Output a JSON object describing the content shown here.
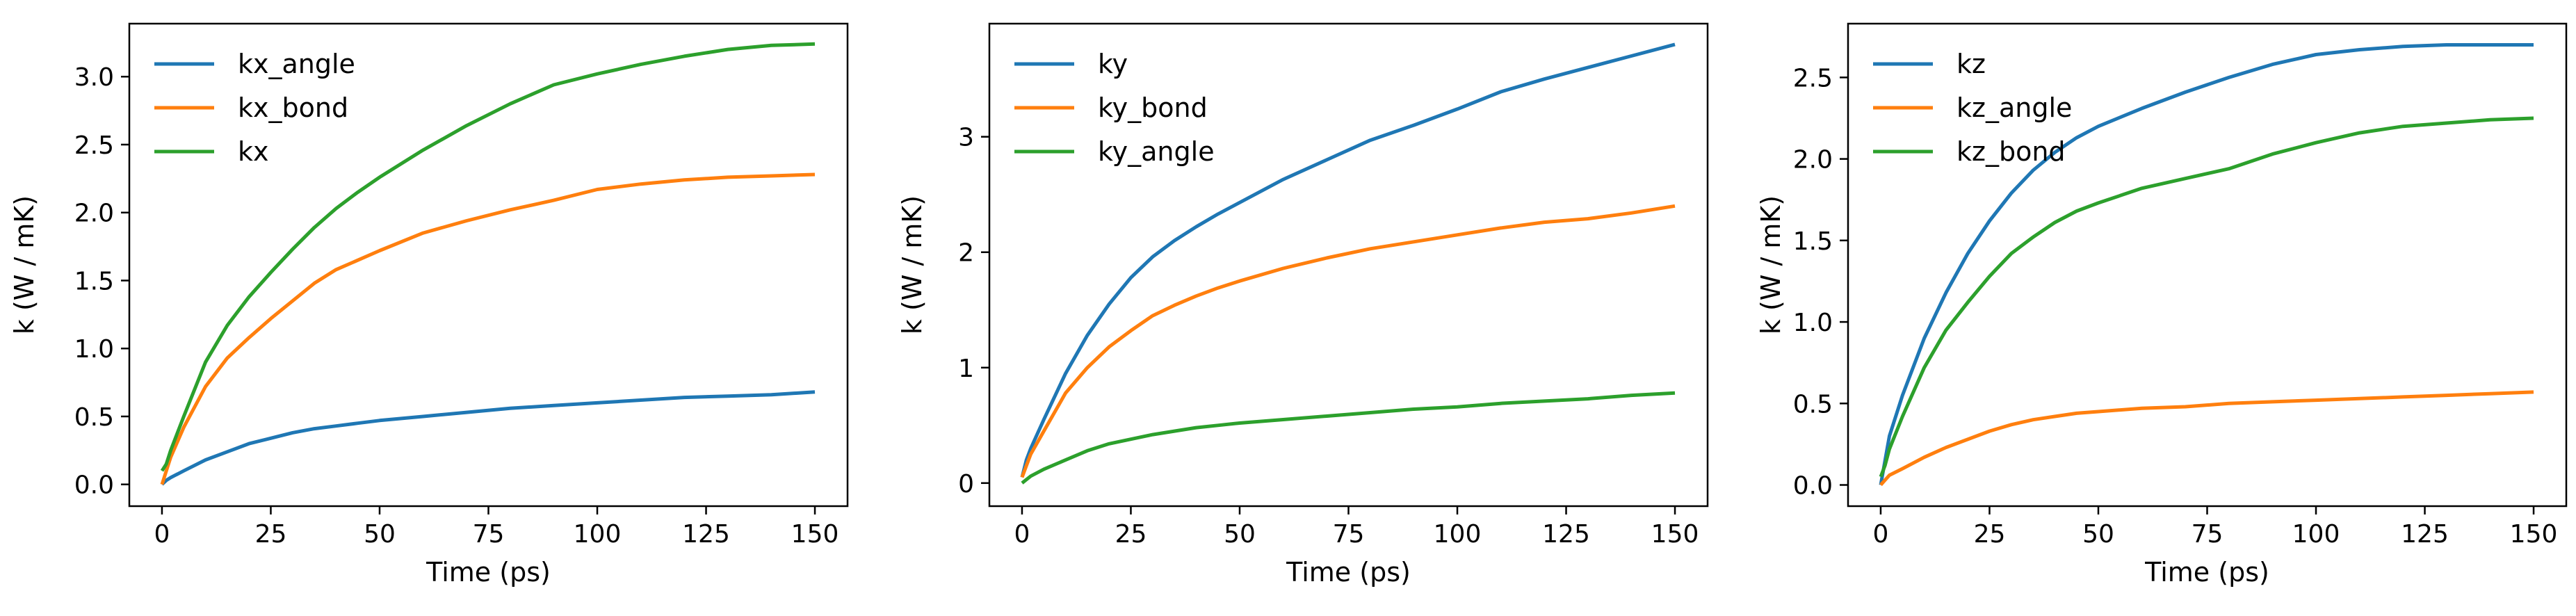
{
  "chart_data": [
    {
      "type": "line",
      "xlabel": "Time (ps)",
      "ylabel": "k (W / mK)",
      "xlim": [
        -7.5,
        157.5
      ],
      "ylim": [
        -0.16,
        3.39
      ],
      "xticks": [
        0,
        25,
        50,
        75,
        100,
        125,
        150
      ],
      "xtick_labels": [
        "0",
        "25",
        "50",
        "75",
        "100",
        "125",
        "150"
      ],
      "yticks": [
        0.0,
        0.5,
        1.0,
        1.5,
        2.0,
        2.5,
        3.0
      ],
      "ytick_labels": [
        "0.0",
        "0.5",
        "1.0",
        "1.5",
        "2.0",
        "2.5",
        "3.0"
      ],
      "legend_position": "upper-left",
      "x": [
        0,
        1,
        2,
        5,
        10,
        15,
        20,
        25,
        30,
        35,
        40,
        45,
        50,
        60,
        70,
        80,
        90,
        100,
        110,
        120,
        130,
        140,
        150
      ],
      "series": [
        {
          "name": "kx_angle",
          "color": "#1f77b4",
          "values": [
            0.0,
            0.03,
            0.05,
            0.1,
            0.18,
            0.24,
            0.3,
            0.34,
            0.38,
            0.41,
            0.43,
            0.45,
            0.47,
            0.5,
            0.53,
            0.56,
            0.58,
            0.6,
            0.62,
            0.64,
            0.65,
            0.66,
            0.68
          ]
        },
        {
          "name": "kx_bond",
          "color": "#ff7f0e",
          "values": [
            0.0,
            0.1,
            0.2,
            0.42,
            0.72,
            0.93,
            1.08,
            1.22,
            1.35,
            1.48,
            1.58,
            1.65,
            1.72,
            1.85,
            1.94,
            2.02,
            2.09,
            2.17,
            2.21,
            2.24,
            2.26,
            2.27,
            2.28
          ]
        },
        {
          "name": "kx",
          "color": "#2ca02c",
          "values": [
            0.1,
            0.15,
            0.25,
            0.5,
            0.9,
            1.17,
            1.38,
            1.56,
            1.73,
            1.89,
            2.03,
            2.15,
            2.26,
            2.46,
            2.64,
            2.8,
            2.94,
            3.02,
            3.09,
            3.15,
            3.2,
            3.23,
            3.24
          ]
        }
      ]
    },
    {
      "type": "line",
      "xlabel": "Time (ps)",
      "ylabel": "k (W / mK)",
      "xlim": [
        -7.5,
        157.5
      ],
      "ylim": [
        -0.2,
        3.98
      ],
      "xticks": [
        0,
        25,
        50,
        75,
        100,
        125,
        150
      ],
      "xtick_labels": [
        "0",
        "25",
        "50",
        "75",
        "100",
        "125",
        "150"
      ],
      "yticks": [
        0,
        1,
        2,
        3
      ],
      "ytick_labels": [
        "0",
        "1",
        "2",
        "3"
      ],
      "legend_position": "upper-left",
      "x": [
        0,
        1,
        2,
        5,
        10,
        15,
        20,
        25,
        30,
        35,
        40,
        45,
        50,
        60,
        70,
        80,
        90,
        100,
        110,
        120,
        130,
        140,
        150
      ],
      "series": [
        {
          "name": "ky",
          "color": "#1f77b4",
          "values": [
            0.05,
            0.2,
            0.3,
            0.55,
            0.95,
            1.28,
            1.55,
            1.78,
            1.96,
            2.1,
            2.22,
            2.33,
            2.43,
            2.63,
            2.8,
            2.97,
            3.1,
            3.24,
            3.39,
            3.5,
            3.6,
            3.7,
            3.8
          ]
        },
        {
          "name": "ky_bond",
          "color": "#ff7f0e",
          "values": [
            0.05,
            0.15,
            0.25,
            0.45,
            0.78,
            1.0,
            1.18,
            1.32,
            1.45,
            1.54,
            1.62,
            1.69,
            1.75,
            1.86,
            1.95,
            2.03,
            2.09,
            2.15,
            2.21,
            2.26,
            2.29,
            2.34,
            2.4
          ]
        },
        {
          "name": "ky_angle",
          "color": "#2ca02c",
          "values": [
            0.0,
            0.03,
            0.06,
            0.12,
            0.2,
            0.28,
            0.34,
            0.38,
            0.42,
            0.45,
            0.48,
            0.5,
            0.52,
            0.55,
            0.58,
            0.61,
            0.64,
            0.66,
            0.69,
            0.71,
            0.73,
            0.76,
            0.78
          ]
        }
      ]
    },
    {
      "type": "line",
      "xlabel": "Time (ps)",
      "ylabel": "k (W / mK)",
      "xlim": [
        -7.5,
        157.5
      ],
      "ylim": [
        -0.13,
        2.83
      ],
      "xticks": [
        0,
        25,
        50,
        75,
        100,
        125,
        150
      ],
      "xtick_labels": [
        "0",
        "25",
        "50",
        "75",
        "100",
        "125",
        "150"
      ],
      "yticks": [
        0.0,
        0.5,
        1.0,
        1.5,
        2.0,
        2.5
      ],
      "ytick_labels": [
        "0.0",
        "0.5",
        "1.0",
        "1.5",
        "2.0",
        "2.5"
      ],
      "legend_position": "upper-left",
      "x": [
        0,
        1,
        2,
        5,
        10,
        15,
        20,
        25,
        30,
        35,
        40,
        45,
        50,
        60,
        70,
        80,
        90,
        100,
        110,
        120,
        130,
        140,
        150
      ],
      "series": [
        {
          "name": "kz",
          "color": "#1f77b4",
          "values": [
            0.0,
            0.15,
            0.3,
            0.55,
            0.9,
            1.18,
            1.42,
            1.62,
            1.79,
            1.93,
            2.04,
            2.13,
            2.2,
            2.31,
            2.41,
            2.5,
            2.58,
            2.64,
            2.67,
            2.69,
            2.7,
            2.7,
            2.7
          ]
        },
        {
          "name": "kz_angle",
          "color": "#ff7f0e",
          "values": [
            0.0,
            0.03,
            0.06,
            0.1,
            0.17,
            0.23,
            0.28,
            0.33,
            0.37,
            0.4,
            0.42,
            0.44,
            0.45,
            0.47,
            0.48,
            0.5,
            0.51,
            0.52,
            0.53,
            0.54,
            0.55,
            0.56,
            0.57
          ]
        },
        {
          "name": "kz_bond",
          "color": "#2ca02c",
          "values": [
            0.05,
            0.12,
            0.22,
            0.42,
            0.72,
            0.95,
            1.12,
            1.28,
            1.42,
            1.52,
            1.61,
            1.68,
            1.73,
            1.82,
            1.88,
            1.94,
            2.03,
            2.1,
            2.16,
            2.2,
            2.22,
            2.24,
            2.25
          ]
        }
      ]
    }
  ]
}
